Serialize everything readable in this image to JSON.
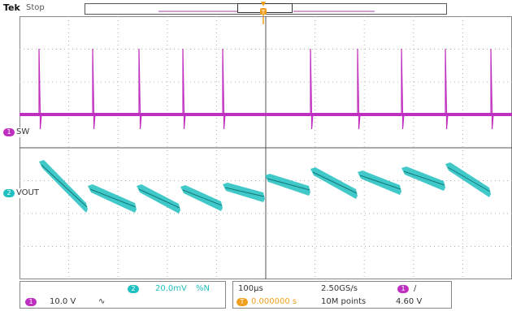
{
  "header": {
    "brand": "Tek",
    "state": "Stop"
  },
  "trigger": {
    "marker_label": "T",
    "color": "#f0a020"
  },
  "colors": {
    "ch1": "#c030c0",
    "ch2": "#20c0c0",
    "grid": "#b0b0b0",
    "axis": "#555555"
  },
  "channels": [
    {
      "id": "1",
      "name": "SW",
      "color": "#c030c0"
    },
    {
      "id": "2",
      "name": "VOUT",
      "color": "#20c0c0"
    }
  ],
  "readout": {
    "ch2_scale": "20.0mV",
    "ch2_bw": "%N",
    "ch1_scale": "10.0 V",
    "ch1_coupling": "∿",
    "timebase": "100µs",
    "sample_rate": "2.50GS/s",
    "trigger_pos": "0.000000 s",
    "record_length": "10M points",
    "trigger_source": "1",
    "trigger_slope": "/",
    "trigger_level": "4.60 V"
  },
  "icons": {
    "ch1_chip": "ch1-chip-icon",
    "ch2_chip": "ch2-chip-icon",
    "trigger": "trigger-marker-icon"
  }
}
